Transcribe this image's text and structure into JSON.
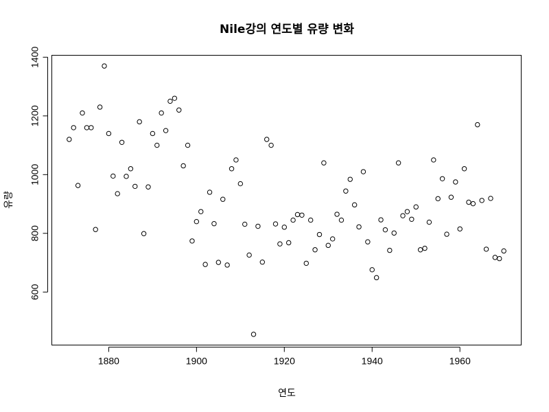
{
  "chart_data": {
    "type": "scatter",
    "title": "Nile강의 연도별 유량 변화",
    "xlabel": "연도",
    "ylabel": "유량",
    "xlim": [
      1871,
      1970
    ],
    "ylim": [
      456,
      1370
    ],
    "x_ticks": [
      "1880",
      "1900",
      "1920",
      "1940",
      "1960"
    ],
    "y_ticks": [
      "600",
      "800",
      "1000",
      "1200",
      "1400"
    ],
    "grid": false,
    "x": [
      1871,
      1872,
      1873,
      1874,
      1875,
      1876,
      1877,
      1878,
      1879,
      1880,
      1881,
      1882,
      1883,
      1884,
      1885,
      1886,
      1887,
      1888,
      1889,
      1890,
      1891,
      1892,
      1893,
      1894,
      1895,
      1896,
      1897,
      1898,
      1899,
      1900,
      1901,
      1902,
      1903,
      1904,
      1905,
      1906,
      1907,
      1908,
      1909,
      1910,
      1911,
      1912,
      1913,
      1914,
      1915,
      1916,
      1917,
      1918,
      1919,
      1920,
      1921,
      1922,
      1923,
      1924,
      1925,
      1926,
      1927,
      1928,
      1929,
      1930,
      1931,
      1932,
      1933,
      1934,
      1935,
      1936,
      1937,
      1938,
      1939,
      1940,
      1941,
      1942,
      1943,
      1944,
      1945,
      1946,
      1947,
      1948,
      1949,
      1950,
      1951,
      1952,
      1953,
      1954,
      1955,
      1956,
      1957,
      1958,
      1959,
      1960,
      1961,
      1962,
      1963,
      1964,
      1965,
      1966,
      1967,
      1968,
      1969,
      1970
    ],
    "y": [
      1120,
      1160,
      963,
      1210,
      1160,
      1160,
      813,
      1230,
      1370,
      1140,
      995,
      935,
      1110,
      994,
      1020,
      960,
      1180,
      799,
      958,
      1140,
      1100,
      1210,
      1150,
      1250,
      1260,
      1220,
      1030,
      1100,
      774,
      840,
      874,
      694,
      940,
      833,
      701,
      916,
      692,
      1020,
      1050,
      969,
      831,
      726,
      456,
      824,
      702,
      1120,
      1100,
      832,
      764,
      821,
      768,
      845,
      864,
      862,
      698,
      845,
      744,
      796,
      1040,
      759,
      781,
      865,
      845,
      944,
      984,
      897,
      822,
      1010,
      771,
      676,
      649,
      846,
      812,
      742,
      801,
      1040,
      860,
      874,
      848,
      890,
      744,
      749,
      838,
      1050,
      918,
      986,
      797,
      923,
      975,
      815,
      1020,
      906,
      901,
      1170,
      912,
      746,
      919,
      718,
      714,
      740
    ]
  }
}
